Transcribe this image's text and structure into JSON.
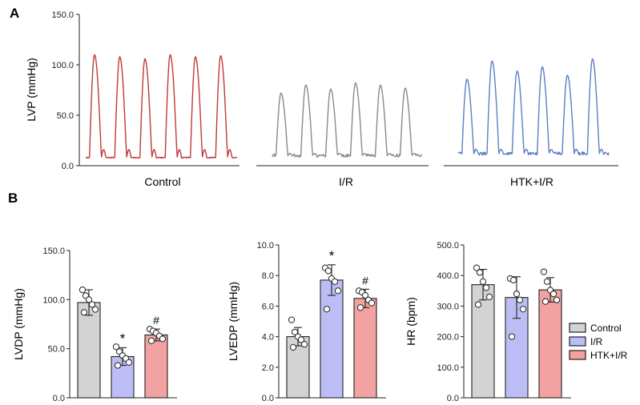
{
  "panels": {
    "a": "A",
    "b": "B"
  },
  "colors": {
    "control_fill": "#d3d3d3",
    "ir_fill": "#bdbdf5",
    "htk_fill": "#f3a2a2",
    "control_trace": "#c0393b",
    "ir_trace": "#8a8a8a",
    "htk_trace": "#5b7fc4"
  },
  "chart_data": [
    {
      "type": "line",
      "panel": "A",
      "ylabel": "LVP (mmHg)",
      "yticks": [
        "150.0",
        "100.0",
        "50.0",
        "0.0"
      ],
      "ylim": [
        0,
        150
      ],
      "grid": false,
      "series": [
        {
          "name": "Control",
          "beats": 6,
          "peaks": [
            110,
            108,
            106,
            110,
            108,
            109
          ],
          "baseline": 8,
          "trough_notch": 16
        },
        {
          "name": "I/R",
          "beats": 6,
          "peaks": [
            72,
            80,
            76,
            82,
            80,
            77
          ],
          "baseline": 10,
          "trough_notch": 12
        },
        {
          "name": "HTK+I/R",
          "beats": 6,
          "peaks": [
            86,
            104,
            94,
            98,
            90,
            106
          ],
          "baseline": 12,
          "trough_notch": 16
        }
      ]
    },
    {
      "type": "bar",
      "panel": "B",
      "ylabel": "LVDP (mmHg)",
      "yticks": [
        "150.0",
        "100.0",
        "50.0",
        "0.0"
      ],
      "ylim": [
        0,
        150
      ],
      "categories": [
        "Control",
        "I/R",
        "HTK+I/R"
      ],
      "values": [
        97,
        42,
        64
      ],
      "errors": [
        13,
        9,
        6
      ],
      "points": [
        [
          110,
          104,
          100,
          95,
          90,
          87
        ],
        [
          52,
          47,
          43,
          40,
          36,
          33
        ],
        [
          70,
          68,
          66,
          63,
          60,
          58
        ]
      ],
      "annotations": [
        "",
        "*",
        "#"
      ]
    },
    {
      "type": "bar",
      "panel": "B",
      "ylabel": "LVEDP (mmHg)",
      "yticks": [
        "10.0",
        "8.0",
        "6.0",
        "4.0",
        "2.0",
        "0.0"
      ],
      "ylim": [
        0,
        10
      ],
      "categories": [
        "Control",
        "I/R",
        "HTK+I/R"
      ],
      "values": [
        4.0,
        7.7,
        6.5
      ],
      "errors": [
        0.6,
        1.0,
        0.6
      ],
      "points": [
        [
          5.1,
          4.3,
          4.0,
          3.8,
          3.5,
          3.3
        ],
        [
          8.5,
          8.3,
          7.8,
          7.6,
          7.0,
          5.8
        ],
        [
          7.0,
          6.9,
          6.7,
          6.4,
          6.2,
          5.9
        ]
      ],
      "annotations": [
        "",
        "*",
        "#"
      ]
    },
    {
      "type": "bar",
      "panel": "B",
      "ylabel": "HR (bpm)",
      "yticks": [
        "500.0",
        "400.0",
        "300.0",
        "200.0",
        "100.0",
        "0.0"
      ],
      "ylim": [
        0,
        500
      ],
      "categories": [
        "Control",
        "I/R",
        "HTK+I/R"
      ],
      "values": [
        370,
        328,
        353
      ],
      "errors": [
        50,
        68,
        40
      ],
      "points": [
        [
          425,
          410,
          380,
          360,
          330,
          305
        ],
        [
          390,
          385,
          340,
          320,
          290,
          200
        ],
        [
          412,
          380,
          352,
          340,
          320,
          315
        ]
      ],
      "annotations": [
        "",
        "",
        ""
      ]
    }
  ],
  "legend": {
    "position": "right",
    "entries": [
      "Control",
      "I/R",
      "HTK+I/R"
    ]
  }
}
